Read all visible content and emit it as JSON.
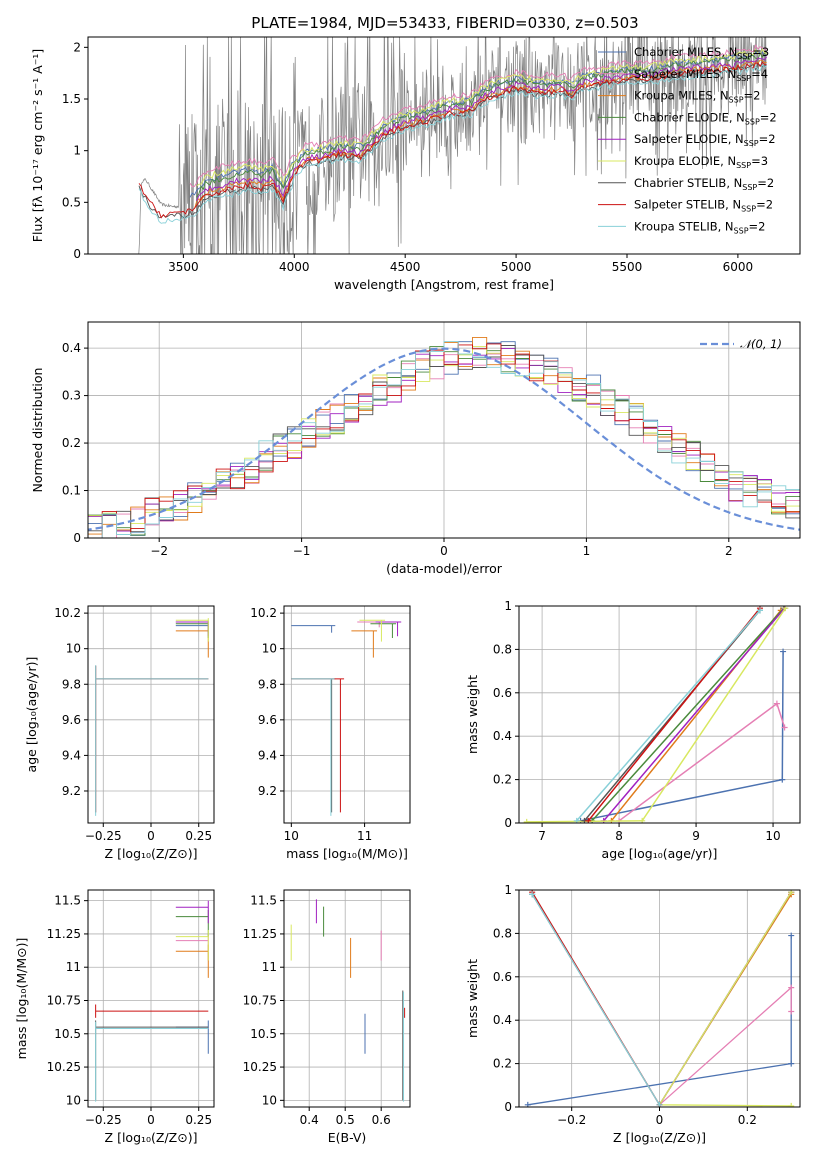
{
  "figure": {
    "title": "PLATE=1984, MJD=53433, FIBERID=0330, z=0.503"
  },
  "colors": {
    "data": "#808080",
    "Chabrier MILES": "#4c72b0",
    "Salpeter MILES": "#e57fb4",
    "Kroupa MILES": "#e07b1a",
    "Chabrier ELODIE": "#4a8a3c",
    "Salpeter ELODIE": "#a020c0",
    "Kroupa ELODIE": "#d8e860",
    "Chabrier STELIB": "#555555",
    "Salpeter STELIB": "#cc1111",
    "Kroupa STELIB": "#88d0d8",
    "gaussian": "#6a8fd8"
  },
  "chart_data": [
    {
      "id": "spectrum",
      "type": "line",
      "xlabel": "wavelength [Angstrom, rest frame]",
      "ylabel": "Flux [fλ 10⁻¹⁷ erg cm⁻² s⁻¹ A⁻¹]",
      "xlim": [
        3070,
        6280
      ],
      "ylim": [
        0,
        2.1
      ],
      "xticks": [
        3500,
        4000,
        4500,
        5000,
        5500,
        6000
      ],
      "yticks": [
        0.0,
        0.5,
        1.0,
        1.5,
        2.0
      ],
      "grid": false,
      "legend_position": "right",
      "legend": [
        {
          "label": "Chabrier MILES",
          "n": "3"
        },
        {
          "label": "Salpeter MILES",
          "n": "4"
        },
        {
          "label": "Kroupa MILES",
          "n": "2"
        },
        {
          "label": "Chabrier ELODIE",
          "n": "2"
        },
        {
          "label": "Salpeter ELODIE",
          "n": "2"
        },
        {
          "label": "Kroupa ELODIE",
          "n": "3"
        },
        {
          "label": "Chabrier STELIB",
          "n": "2"
        },
        {
          "label": "Salpeter STELIB",
          "n": "2"
        },
        {
          "label": "Kroupa STELIB",
          "n": "2"
        }
      ],
      "data_continuum": [
        [
          3200,
          0.0
        ],
        [
          3300,
          0.0
        ],
        [
          3310,
          0.7
        ],
        [
          3330,
          0.72
        ],
        [
          3400,
          0.48
        ],
        [
          3450,
          0.46
        ],
        [
          3500,
          0.46
        ],
        [
          3600,
          0.5
        ],
        [
          3700,
          0.6
        ],
        [
          3800,
          0.65
        ],
        [
          3900,
          0.68
        ],
        [
          3960,
          0.5
        ],
        [
          4000,
          0.78
        ],
        [
          4100,
          0.92
        ],
        [
          4200,
          1.0
        ],
        [
          4300,
          1.05
        ],
        [
          4400,
          1.2
        ],
        [
          4500,
          1.3
        ],
        [
          4600,
          1.35
        ],
        [
          4700,
          1.4
        ],
        [
          4800,
          1.42
        ],
        [
          4860,
          1.55
        ],
        [
          4900,
          1.58
        ],
        [
          5000,
          1.62
        ],
        [
          5100,
          1.6
        ],
        [
          5200,
          1.62
        ],
        [
          5300,
          1.65
        ],
        [
          5400,
          1.68
        ],
        [
          5500,
          1.7
        ],
        [
          5600,
          1.72
        ],
        [
          5700,
          1.75
        ],
        [
          5800,
          1.76
        ],
        [
          5900,
          1.78
        ],
        [
          6000,
          1.8
        ],
        [
          6100,
          1.85
        ]
      ],
      "model_continuum": [
        [
          3300,
          0.77
        ],
        [
          3350,
          0.58
        ],
        [
          3400,
          0.47
        ],
        [
          3500,
          0.5
        ],
        [
          3550,
          0.52
        ],
        [
          3600,
          0.65
        ],
        [
          3700,
          0.72
        ],
        [
          3800,
          0.76
        ],
        [
          3850,
          0.73
        ],
        [
          3900,
          0.78
        ],
        [
          3950,
          0.6
        ],
        [
          4000,
          0.85
        ],
        [
          4050,
          0.95
        ],
        [
          4100,
          0.96
        ],
        [
          4200,
          1.02
        ],
        [
          4300,
          1.0
        ],
        [
          4400,
          1.2
        ],
        [
          4500,
          1.3
        ],
        [
          4600,
          1.35
        ],
        [
          4700,
          1.42
        ],
        [
          4800,
          1.45
        ],
        [
          4850,
          1.55
        ],
        [
          4900,
          1.6
        ],
        [
          5000,
          1.66
        ],
        [
          5100,
          1.62
        ],
        [
          5200,
          1.64
        ],
        [
          5250,
          1.6
        ],
        [
          5300,
          1.68
        ],
        [
          5400,
          1.72
        ],
        [
          5500,
          1.75
        ],
        [
          5600,
          1.75
        ],
        [
          5700,
          1.8
        ],
        [
          5800,
          1.82
        ],
        [
          5900,
          1.84
        ],
        [
          6000,
          1.86
        ],
        [
          6100,
          1.9
        ]
      ]
    },
    {
      "id": "residuals",
      "type": "line",
      "xlabel": "(data-model)/error",
      "ylabel": "Normed distribution",
      "xlim": [
        -2.5,
        2.5
      ],
      "ylim": [
        0,
        0.455
      ],
      "xticks": [
        -2,
        -1,
        0,
        1,
        2
      ],
      "yticks": [
        0.0,
        0.1,
        0.2,
        0.3,
        0.4
      ],
      "grid": true,
      "legend_position": "top-right",
      "gaussian_label": "𝒩(0, 1)",
      "gaussian": {
        "mu": 0,
        "sigma": 1
      },
      "hist_base": [
        0.02,
        0.025,
        0.03,
        0.04,
        0.05,
        0.06,
        0.07,
        0.085,
        0.1,
        0.115,
        0.13,
        0.15,
        0.17,
        0.185,
        0.2,
        0.22,
        0.24,
        0.25,
        0.27,
        0.29,
        0.31,
        0.32,
        0.34,
        0.36,
        0.37,
        0.38,
        0.385,
        0.39,
        0.385,
        0.38,
        0.37,
        0.36,
        0.35,
        0.34,
        0.32,
        0.31,
        0.29,
        0.27,
        0.25,
        0.23,
        0.21,
        0.19,
        0.17,
        0.15,
        0.13,
        0.11,
        0.1,
        0.09,
        0.08,
        0.07
      ],
      "hist_bin_width": 0.1
    },
    {
      "id": "age-vs-Z",
      "type": "scatter",
      "xlabel": "Z [log₁₀(Z/Z⊙)]",
      "ylabel": "age  [log₁₀(age/yr)]",
      "xlim": [
        -0.33,
        0.33
      ],
      "ylim": [
        9.02,
        10.24
      ],
      "xticks": [
        -0.25,
        0.0,
        0.25
      ],
      "yticks": [
        9.2,
        9.4,
        9.6,
        9.8,
        10.0,
        10.2
      ],
      "grid": true
    },
    {
      "id": "age-vs-mass",
      "type": "scatter",
      "xlabel": "mass [log₁₀(M/M⊙)]",
      "ylabel": "",
      "xlim": [
        9.9,
        11.62
      ],
      "ylim": [
        9.02,
        10.24
      ],
      "xticks": [
        10,
        11
      ],
      "yticks": [
        9.2,
        9.4,
        9.6,
        9.8,
        10.0,
        10.2
      ],
      "grid": true
    },
    {
      "id": "weight-vs-age",
      "type": "line",
      "xlabel": "age  [log₁₀(age/yr)]",
      "ylabel": "mass weight",
      "xlim": [
        6.7,
        10.35
      ],
      "ylim": [
        0,
        1.0
      ],
      "xticks": [
        7,
        8,
        9,
        10
      ],
      "yticks": [
        0.0,
        0.2,
        0.4,
        0.6,
        0.8,
        1.0
      ],
      "grid": true
    },
    {
      "id": "mass-vs-Z",
      "type": "scatter",
      "xlabel": "Z [log₁₀(Z/Z⊙)]",
      "ylabel": "mass [log₁₀(M/M⊙)]",
      "xlim": [
        -0.33,
        0.33
      ],
      "ylim": [
        9.95,
        11.58
      ],
      "xticks": [
        -0.25,
        0.0,
        0.25
      ],
      "yticks": [
        10.0,
        10.25,
        10.5,
        10.75,
        11.0,
        11.25,
        11.5
      ],
      "grid": true
    },
    {
      "id": "mass-vs-EBV",
      "type": "scatter",
      "xlabel": "E(B-V)",
      "ylabel": "",
      "xlim": [
        0.33,
        0.68
      ],
      "ylim": [
        9.95,
        11.58
      ],
      "xticks": [
        0.4,
        0.5,
        0.6
      ],
      "yticks": [
        10.0,
        10.25,
        10.5,
        10.75,
        11.0,
        11.25,
        11.5
      ],
      "grid": true
    },
    {
      "id": "weight-vs-Z",
      "type": "line",
      "xlabel": "Z [log₁₀(Z/Z⊙)]",
      "ylabel": "mass weight",
      "xlim": [
        -0.32,
        0.32
      ],
      "ylim": [
        0,
        1.0
      ],
      "xticks": [
        -0.2,
        0.0,
        0.2
      ],
      "yticks": [
        0.0,
        0.2,
        0.4,
        0.6,
        0.8,
        1.0
      ],
      "grid": true
    }
  ],
  "models": [
    {
      "name": "Chabrier MILES",
      "mass": 10.55,
      "ebv": 0.555,
      "mass_err": 0.2,
      "pts": [
        {
          "age": 10.13,
          "z": 0.3,
          "w": 0.79,
          "dage": 0.04
        },
        {
          "age": 10.12,
          "z": 0.3,
          "w": 0.2,
          "dage": 0.04
        },
        {
          "age": 7.5,
          "z": -0.3,
          "w": 0.01,
          "dage": 0.04
        }
      ]
    },
    {
      "name": "Salpeter MILES",
      "mass": 11.2,
      "ebv": 0.6,
      "mass_err": 0.15,
      "pts": [
        {
          "age": 10.15,
          "z": 0.3,
          "w": 0.44,
          "dage": 0.03
        },
        {
          "age": 10.05,
          "z": 0.3,
          "w": 0.55,
          "dage": 0.03
        },
        {
          "age": 8.0,
          "z": 0.0,
          "w": 0.01,
          "dage": 0.03
        }
      ]
    },
    {
      "name": "Kroupa MILES",
      "mass": 11.12,
      "ebv": 0.515,
      "mass_err": 0.2,
      "pts": [
        {
          "age": 10.1,
          "z": 0.3,
          "w": 0.98,
          "dage": 0.15
        },
        {
          "age": 7.9,
          "z": 0.0,
          "w": 0.01,
          "dage": 0.15
        }
      ]
    },
    {
      "name": "Chabrier ELODIE",
      "mass": 11.38,
      "ebv": 0.44,
      "mass_err": 0.15,
      "pts": [
        {
          "age": 10.14,
          "z": 0.3,
          "w": 0.99,
          "dage": 0.08
        },
        {
          "age": 7.65,
          "z": 0.0,
          "w": 0.01,
          "dage": 0.08
        }
      ]
    },
    {
      "name": "Salpeter ELODIE",
      "mass": 11.45,
      "ebv": 0.42,
      "mass_err": 0.12,
      "pts": [
        {
          "age": 10.15,
          "z": 0.3,
          "w": 0.99,
          "dage": 0.08
        },
        {
          "age": 7.8,
          "z": 0.0,
          "w": 0.01,
          "dage": 0.08
        }
      ]
    },
    {
      "name": "Kroupa ELODIE",
      "mass": 11.23,
      "ebv": 0.35,
      "mass_err": 0.18,
      "pts": [
        {
          "age": 10.16,
          "z": 0.3,
          "w": 0.99,
          "dage": 0.12
        },
        {
          "age": 8.3,
          "z": 0.0,
          "w": 0.01,
          "dage": 0.12
        },
        {
          "age": 6.8,
          "z": 0.3,
          "w": 0.005,
          "dage": 0.12
        }
      ]
    },
    {
      "name": "Chabrier STELIB",
      "mass": 10.55,
      "ebv": 0.66,
      "mass_err": 0.55,
      "pts": [
        {
          "age": 9.83,
          "z": -0.29,
          "w": 0.98,
          "dage": 0.75
        },
        {
          "age": 7.55,
          "z": 0.0,
          "w": 0.01,
          "dage": 0.75
        }
      ]
    },
    {
      "name": "Salpeter STELIB",
      "mass": 10.67,
      "ebv": 0.665,
      "mass_err": 0.05,
      "pts": [
        {
          "age": 9.83,
          "z": -0.29,
          "w": 0.99,
          "dage": 0.75
        },
        {
          "age": 7.6,
          "z": 0.0,
          "w": 0.01,
          "dage": 0.75
        }
      ]
    },
    {
      "name": "Kroupa STELIB",
      "mass": 10.54,
      "ebv": 0.662,
      "mass_err": 0.55,
      "pts": [
        {
          "age": 9.83,
          "z": -0.29,
          "w": 0.98,
          "dage": 0.77
        },
        {
          "age": 7.45,
          "z": 0.0,
          "w": 0.01,
          "dage": 0.77
        }
      ]
    }
  ]
}
